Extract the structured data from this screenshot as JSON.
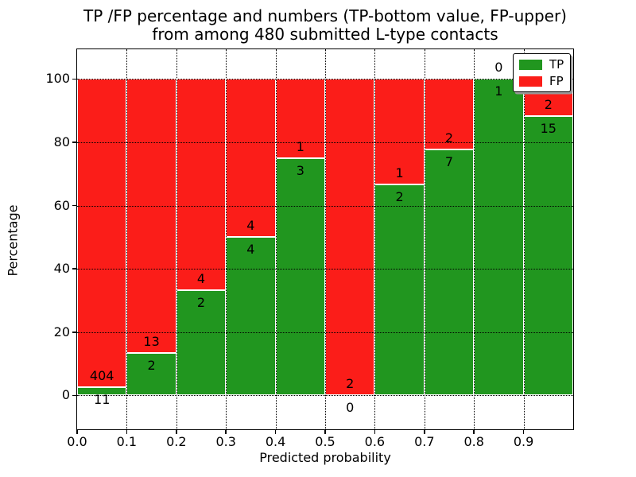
{
  "title": {
    "line1": "TP /FP percentage and numbers (TP-bottom value, FP-upper)",
    "line2": "from among 480 submitted L-type contacts"
  },
  "chart_data": {
    "type": "bar",
    "variant": "stacked-100-percent",
    "title": "TP /FP percentage and numbers (TP-bottom value, FP-upper) from among 480 submitted L-type contacts",
    "xlabel": "Predicted probability",
    "ylabel": "Percentage",
    "xlim": [
      0.0,
      1.0
    ],
    "ylim": [
      -10.7,
      109.4
    ],
    "grid": true,
    "grid_style": "dotted",
    "x_tick_values": [
      0.0,
      0.1,
      0.2,
      0.3,
      0.4,
      0.5,
      0.6,
      0.7,
      0.8,
      0.9
    ],
    "x_tick_labels": [
      "0.0",
      "0.1",
      "0.2",
      "0.3",
      "0.4",
      "0.5",
      "0.6",
      "0.7",
      "0.8",
      "0.9"
    ],
    "y_tick_values": [
      0,
      20,
      40,
      60,
      80,
      100
    ],
    "y_tick_labels": [
      "0",
      "20",
      "40",
      "60",
      "80",
      "100"
    ],
    "colors": {
      "tp": "#21961f",
      "fp": "#fb1d19"
    },
    "legend": {
      "position": "upper right",
      "entries": [
        {
          "name": "TP",
          "color": "#21961f"
        },
        {
          "name": "FP",
          "color": "#fb1d19"
        }
      ]
    },
    "total_contacts": 480,
    "bins": [
      {
        "range": [
          0.0,
          0.1
        ],
        "tp": 11,
        "fp": 404,
        "tp_pct": 2.65
      },
      {
        "range": [
          0.1,
          0.2
        ],
        "tp": 2,
        "fp": 13,
        "tp_pct": 13.33
      },
      {
        "range": [
          0.2,
          0.3
        ],
        "tp": 2,
        "fp": 4,
        "tp_pct": 33.33
      },
      {
        "range": [
          0.3,
          0.4
        ],
        "tp": 4,
        "fp": 4,
        "tp_pct": 50.0
      },
      {
        "range": [
          0.4,
          0.5
        ],
        "tp": 3,
        "fp": 1,
        "tp_pct": 75.0
      },
      {
        "range": [
          0.5,
          0.6
        ],
        "tp": 0,
        "fp": 2,
        "tp_pct": 0.0
      },
      {
        "range": [
          0.6,
          0.7
        ],
        "tp": 2,
        "fp": 1,
        "tp_pct": 66.67
      },
      {
        "range": [
          0.7,
          0.8
        ],
        "tp": 7,
        "fp": 2,
        "tp_pct": 77.78
      },
      {
        "range": [
          0.8,
          0.9
        ],
        "tp": 1,
        "fp": 0,
        "tp_pct": 100.0
      },
      {
        "range": [
          0.9,
          1.0
        ],
        "tp": 15,
        "fp": 2,
        "tp_pct": 88.24
      }
    ]
  }
}
